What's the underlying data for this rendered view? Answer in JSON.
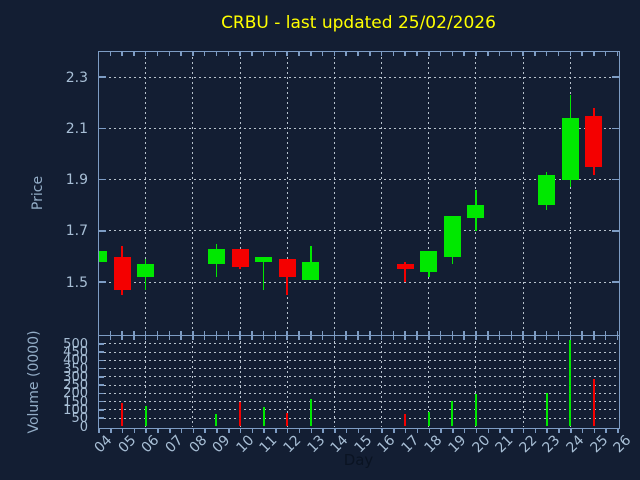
{
  "title": {
    "text": "CRBU - last updated 25/02/2026"
  },
  "colors": {
    "background": "#131e33",
    "up": "#00e800",
    "down": "#f40000",
    "spine": "#7d9cc4",
    "grid": "#b7c2cd",
    "tick_label": "#a8bfd6",
    "axis_label": "#93adc7",
    "title": "#ffff00",
    "xlabel": "#0a1322"
  },
  "x_axis": {
    "label": "Day",
    "ticks": [
      "04",
      "05",
      "06",
      "07",
      "08",
      "09",
      "10",
      "11",
      "12",
      "13",
      "14",
      "15",
      "16",
      "17",
      "18",
      "19",
      "20",
      "21",
      "22",
      "23",
      "24",
      "25",
      "26"
    ],
    "grid_days": [
      "06",
      "08",
      "10",
      "12",
      "14",
      "16",
      "18",
      "20",
      "22",
      "24"
    ]
  },
  "price_axis": {
    "label": "Price",
    "ticks": [
      2.3,
      2.1,
      1.9,
      1.7,
      1.5
    ],
    "ylim": [
      1.3,
      2.4
    ]
  },
  "volume_axis": {
    "label": "Volume (0000)",
    "ticks": [
      500,
      450,
      400,
      350,
      300,
      250,
      200,
      150,
      100,
      50,
      0
    ],
    "ylim": [
      0,
      550
    ]
  },
  "chart_data": [
    {
      "type": "candlestick",
      "panel": "price",
      "title": "CRBU - last updated 25/02/2026",
      "xlabel": "Day",
      "ylabel": "Price",
      "ylim": [
        1.3,
        2.4
      ],
      "yticks": [
        1.5,
        1.7,
        1.9,
        2.1,
        2.3
      ],
      "grid": "dashed",
      "up_color": "#00e800",
      "down_color": "#f40000",
      "data": [
        {
          "day": "04",
          "open": 1.58,
          "high": 1.62,
          "low": 1.58,
          "close": 1.62
        },
        {
          "day": "05",
          "open": 1.6,
          "high": 1.64,
          "low": 1.45,
          "close": 1.47
        },
        {
          "day": "06",
          "open": 1.52,
          "high": 1.59,
          "low": 1.47,
          "close": 1.57
        },
        {
          "day": "09",
          "open": 1.57,
          "high": 1.65,
          "low": 1.52,
          "close": 1.63
        },
        {
          "day": "10",
          "open": 1.63,
          "high": 1.63,
          "low": 1.55,
          "close": 1.56
        },
        {
          "day": "11",
          "open": 1.58,
          "high": 1.6,
          "low": 1.47,
          "close": 1.6
        },
        {
          "day": "12",
          "open": 1.59,
          "high": 1.59,
          "low": 1.45,
          "close": 1.52
        },
        {
          "day": "13",
          "open": 1.51,
          "high": 1.64,
          "low": 1.51,
          "close": 1.58
        },
        {
          "day": "17",
          "open": 1.57,
          "high": 1.58,
          "low": 1.5,
          "close": 1.55
        },
        {
          "day": "18",
          "open": 1.54,
          "high": 1.62,
          "low": 1.52,
          "close": 1.62
        },
        {
          "day": "19",
          "open": 1.6,
          "high": 1.76,
          "low": 1.57,
          "close": 1.76
        },
        {
          "day": "20",
          "open": 1.75,
          "high": 1.86,
          "low": 1.7,
          "close": 1.8
        },
        {
          "day": "23",
          "open": 1.8,
          "high": 1.93,
          "low": 1.78,
          "close": 1.92
        },
        {
          "day": "24",
          "open": 1.9,
          "high": 2.23,
          "low": 1.87,
          "close": 2.14
        },
        {
          "day": "25",
          "open": 2.15,
          "high": 2.18,
          "low": 1.92,
          "close": 1.95
        }
      ]
    },
    {
      "type": "bar",
      "panel": "volume",
      "ylabel": "Volume (0000)",
      "ylim": [
        0,
        550
      ],
      "yticks": [
        0,
        50,
        100,
        150,
        200,
        250,
        300,
        350,
        400,
        450,
        500
      ],
      "data": [
        {
          "day": "05",
          "value": 140,
          "direction": "down"
        },
        {
          "day": "06",
          "value": 125,
          "direction": "up"
        },
        {
          "day": "09",
          "value": 78,
          "direction": "up"
        },
        {
          "day": "10",
          "value": 147,
          "direction": "down"
        },
        {
          "day": "11",
          "value": 120,
          "direction": "up"
        },
        {
          "day": "12",
          "value": 80,
          "direction": "down"
        },
        {
          "day": "13",
          "value": 167,
          "direction": "up"
        },
        {
          "day": "17",
          "value": 78,
          "direction": "down"
        },
        {
          "day": "18",
          "value": 85,
          "direction": "up"
        },
        {
          "day": "19",
          "value": 155,
          "direction": "up"
        },
        {
          "day": "20",
          "value": 196,
          "direction": "up"
        },
        {
          "day": "23",
          "value": 202,
          "direction": "up"
        },
        {
          "day": "24",
          "value": 520,
          "direction": "up"
        },
        {
          "day": "25",
          "value": 287,
          "direction": "down"
        }
      ]
    }
  ]
}
